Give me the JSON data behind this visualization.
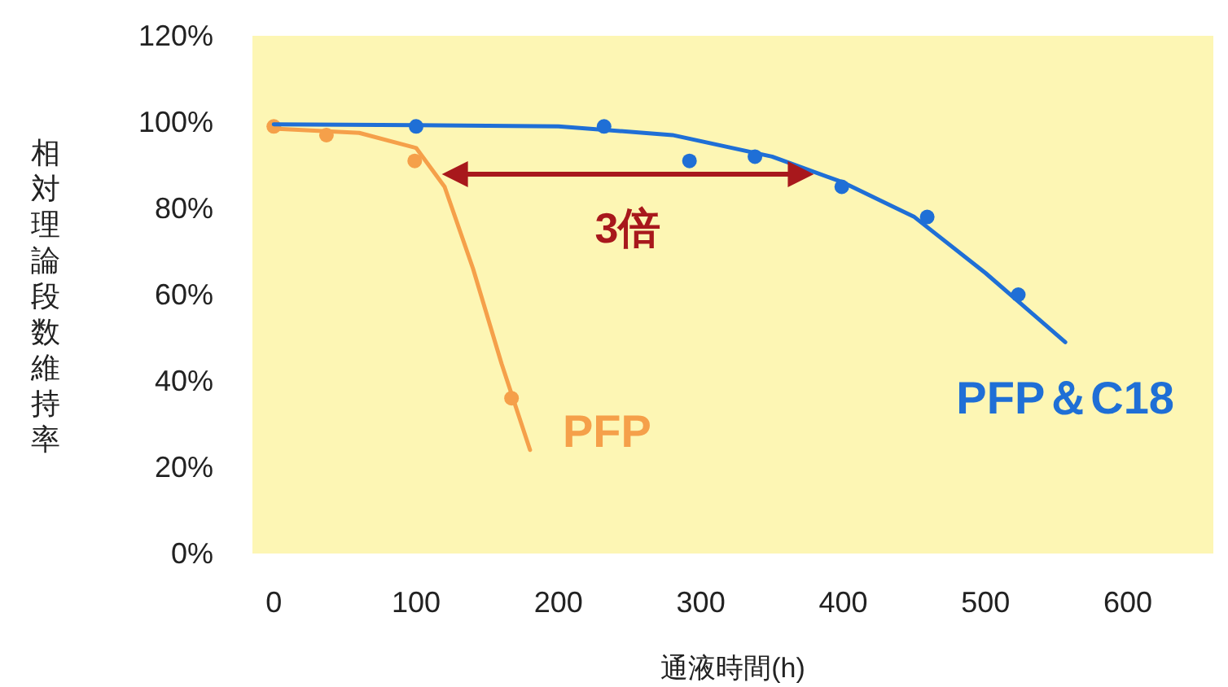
{
  "chart_data": {
    "type": "line",
    "xlabel": "通液時間(h)",
    "ylabel": "相対理論段数維持率",
    "xlim": [
      -15,
      660
    ],
    "ylim": [
      0,
      120
    ],
    "xticks": [
      0,
      100,
      200,
      300,
      400,
      500,
      600
    ],
    "yticks": [
      {
        "value": 0,
        "label": "0%"
      },
      {
        "value": 20,
        "label": "20%"
      },
      {
        "value": 40,
        "label": "40%"
      },
      {
        "value": 60,
        "label": "60%"
      },
      {
        "value": 80,
        "label": "80%"
      },
      {
        "value": 100,
        "label": "100%"
      },
      {
        "value": 120,
        "label": "120%"
      }
    ],
    "grid": false,
    "legend": false,
    "annotations": [
      "3倍"
    ],
    "series": [
      {
        "type": "line",
        "name": "PFP",
        "color": "#f5a04a",
        "x": [
          0,
          60,
          100,
          120,
          140,
          160,
          180
        ],
        "values": [
          98.5,
          97.5,
          94,
          85,
          66,
          44,
          24
        ],
        "marker": "none"
      },
      {
        "type": "scatter",
        "color": "#f5a04a",
        "x": [
          0,
          37,
          99,
          167
        ],
        "values": [
          99,
          97,
          91,
          36
        ],
        "marker": "circle"
      },
      {
        "type": "line",
        "name": "PFP＆C18",
        "color": "#1f6fd6",
        "x": [
          0,
          100,
          200,
          280,
          350,
          400,
          450,
          500,
          556
        ],
        "values": [
          99.5,
          99.3,
          99,
          97,
          92,
          86,
          78,
          65,
          49
        ],
        "marker": "none"
      },
      {
        "type": "scatter",
        "color": "#1f6fd6",
        "x": [
          100,
          232,
          292,
          338,
          399,
          459,
          523
        ],
        "values": [
          99,
          99,
          91,
          92,
          85,
          78,
          60
        ],
        "marker": "circle"
      }
    ]
  }
}
